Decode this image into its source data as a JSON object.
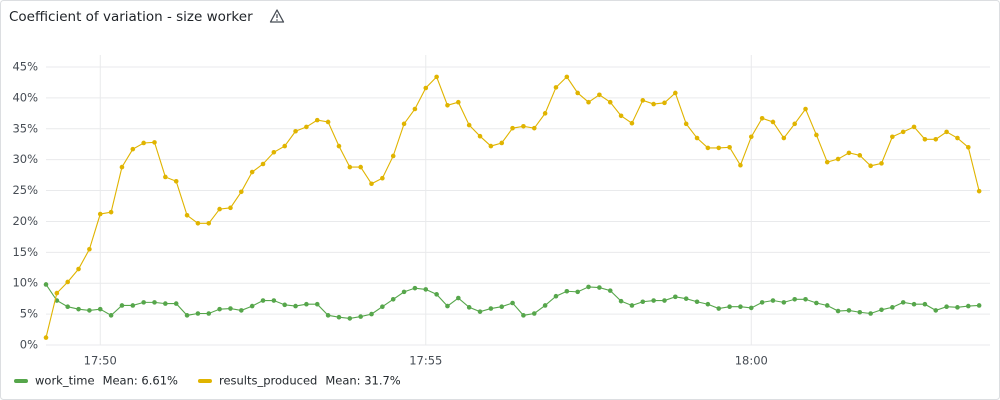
{
  "chart_data": {
    "type": "line",
    "title": "Coefficient of variation - size worker",
    "x": [
      64150,
      64160,
      64170,
      64180,
      64190,
      64200,
      64210,
      64220,
      64230,
      64240,
      64250,
      64260,
      64270,
      64280,
      64290,
      64300,
      64310,
      64320,
      64330,
      64340,
      64350,
      64360,
      64370,
      64380,
      64390,
      64400,
      64410,
      64420,
      64430,
      64440,
      64450,
      64460,
      64470,
      64480,
      64490,
      64500,
      64510,
      64520,
      64530,
      64540,
      64550,
      64560,
      64570,
      64580,
      64590,
      64600,
      64610,
      64620,
      64630,
      64640,
      64650,
      64660,
      64670,
      64680,
      64690,
      64700,
      64710,
      64720,
      64730,
      64740,
      64750,
      64760,
      64770,
      64780,
      64790,
      64800,
      64810,
      64820,
      64830,
      64840,
      64850,
      64860,
      64870,
      64880,
      64890,
      64900,
      64910,
      64920,
      64930,
      64940,
      64950,
      64960,
      64970,
      64980,
      64990,
      65000,
      65010
    ],
    "xlim": [
      64150,
      65020
    ],
    "xticks": [
      {
        "value": 64200,
        "label": "17:50"
      },
      {
        "value": 64500,
        "label": "17:55"
      },
      {
        "value": 64800,
        "label": "18:00"
      }
    ],
    "ylim": [
      0,
      45
    ],
    "yticks": [
      {
        "value": 0,
        "label": "0%"
      },
      {
        "value": 5,
        "label": "5%"
      },
      {
        "value": 10,
        "label": "10%"
      },
      {
        "value": 15,
        "label": "15%"
      },
      {
        "value": 20,
        "label": "20%"
      },
      {
        "value": 25,
        "label": "25%"
      },
      {
        "value": 30,
        "label": "30%"
      },
      {
        "value": 35,
        "label": "35%"
      },
      {
        "value": 40,
        "label": "40%"
      },
      {
        "value": 45,
        "label": "45%"
      }
    ],
    "grid": true,
    "legend": "bottom-left",
    "series": [
      {
        "name": "work_time",
        "legend_stat": "Mean: 6.61%",
        "color": "#56a64b",
        "values": [
          9.8,
          7.2,
          6.2,
          5.8,
          5.6,
          5.8,
          4.8,
          6.4,
          6.4,
          6.9,
          6.9,
          6.7,
          6.7,
          4.8,
          5.1,
          5.1,
          5.8,
          5.9,
          5.6,
          6.3,
          7.2,
          7.2,
          6.5,
          6.3,
          6.6,
          6.6,
          4.8,
          4.5,
          4.3,
          4.6,
          5.0,
          6.2,
          7.4,
          8.6,
          9.2,
          9.0,
          8.2,
          6.3,
          7.6,
          6.1,
          5.4,
          5.9,
          6.2,
          6.8,
          4.8,
          5.1,
          6.4,
          7.9,
          8.7,
          8.6,
          9.4,
          9.3,
          8.8,
          7.1,
          6.4,
          7.0,
          7.2,
          7.2,
          7.8,
          7.5,
          7.0,
          6.6,
          5.9,
          6.2,
          6.2,
          6.0,
          6.9,
          7.2,
          6.9,
          7.4,
          7.4,
          6.8,
          6.4,
          5.5,
          5.6,
          5.3,
          5.1,
          5.7,
          6.1,
          6.9,
          6.6,
          6.6,
          5.6,
          6.2,
          6.1,
          6.3,
          6.4
        ]
      },
      {
        "name": "results_produced",
        "legend_stat": "Mean: 31.7%",
        "color": "#e0b400",
        "values": [
          1.2,
          8.4,
          10.2,
          12.3,
          15.5,
          21.2,
          21.5,
          28.8,
          31.7,
          32.7,
          32.8,
          27.2,
          26.5,
          21.0,
          19.7,
          19.7,
          22.0,
          22.2,
          24.8,
          28.0,
          29.3,
          31.2,
          32.2,
          34.6,
          35.3,
          36.4,
          36.1,
          32.2,
          28.8,
          28.8,
          26.1,
          27.0,
          30.6,
          35.8,
          38.2,
          41.6,
          43.4,
          38.8,
          39.3,
          35.6,
          33.8,
          32.2,
          32.7,
          35.1,
          35.4,
          35.1,
          37.5,
          41.7,
          43.4,
          40.8,
          39.3,
          40.5,
          39.3,
          37.1,
          35.9,
          39.6,
          39.0,
          39.2,
          40.8,
          35.8,
          33.5,
          31.9,
          31.9,
          32.0,
          29.1,
          33.7,
          36.7,
          36.1,
          33.5,
          35.8,
          38.2,
          34.0,
          29.6,
          30.1,
          31.1,
          30.7,
          29.0,
          29.4,
          33.7,
          34.5,
          35.3,
          33.3,
          33.3,
          34.5,
          33.5,
          32.0,
          24.9
        ]
      }
    ]
  }
}
